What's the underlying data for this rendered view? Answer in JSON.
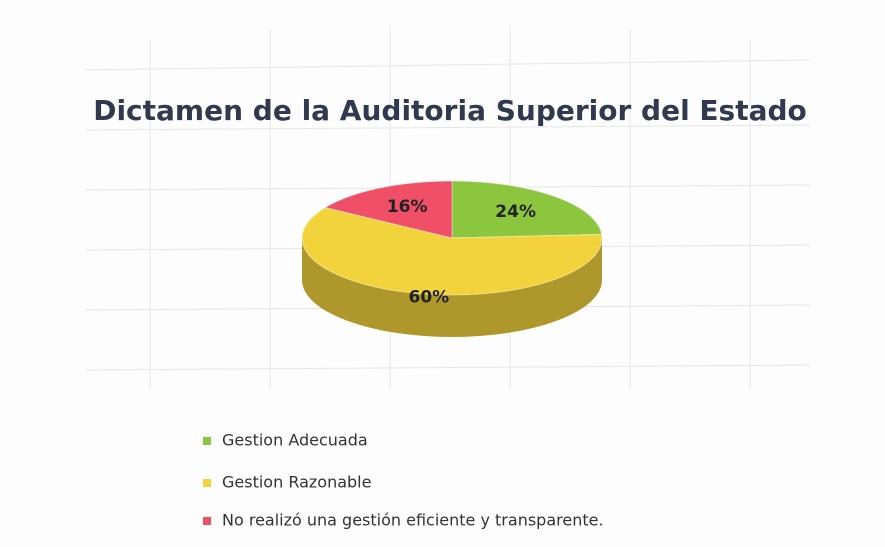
{
  "chart_data": {
    "type": "pie3d",
    "title": "Dictamen de la Auditoria Superior del Estado",
    "categories": [
      "Gestion Adecuada",
      "Gestion Razonable",
      "No realizó una gestión eficiente y transparente."
    ],
    "values": [
      24,
      60,
      16
    ],
    "value_labels": [
      "24%",
      "60%",
      "16%"
    ],
    "colors": [
      "#8cc63e",
      "#f3d33c",
      "#ef5067"
    ],
    "legend": "bottom"
  }
}
